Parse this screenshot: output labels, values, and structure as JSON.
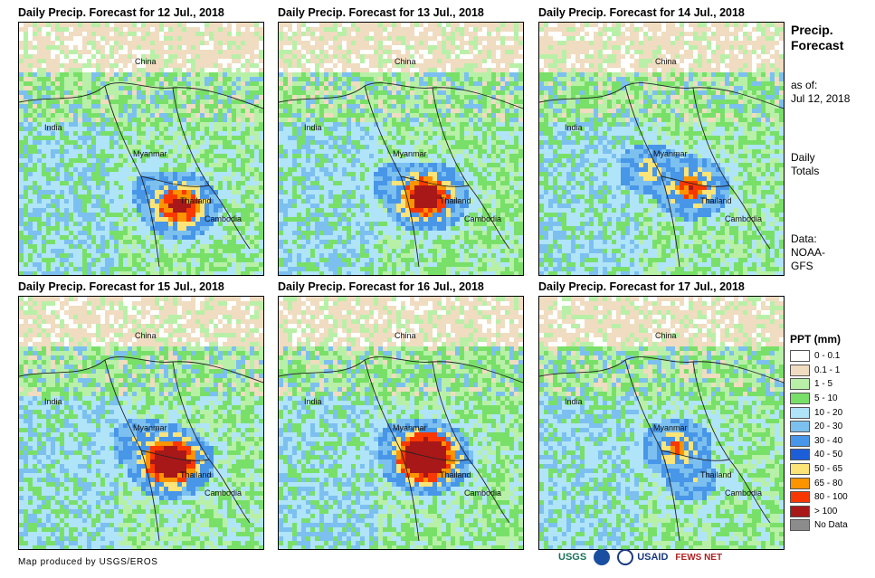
{
  "panels": [
    {
      "title": "Daily Precip. Forecast for 12 Jul., 2018",
      "core": [
        [
          175,
          200,
          1.0
        ],
        [
          150,
          185,
          0.6
        ]
      ]
    },
    {
      "title": "Daily Precip. Forecast for 13 Jul., 2018",
      "core": [
        [
          160,
          190,
          1.1
        ],
        [
          130,
          175,
          0.6
        ]
      ]
    },
    {
      "title": "Daily Precip. Forecast for 14 Jul., 2018",
      "core": [
        [
          165,
          180,
          0.9
        ],
        [
          120,
          160,
          0.7
        ]
      ]
    },
    {
      "title": "Daily Precip. Forecast for 15 Jul., 2018",
      "core": [
        [
          165,
          180,
          1.2
        ],
        [
          135,
          160,
          0.7
        ]
      ]
    },
    {
      "title": "Daily Precip. Forecast for 16 Jul., 2018",
      "core": [
        [
          160,
          175,
          1.3
        ],
        [
          145,
          165,
          0.8
        ]
      ]
    },
    {
      "title": "Daily Precip. Forecast for 17 Jul., 2018",
      "core": [
        [
          150,
          165,
          0.8
        ],
        [
          165,
          200,
          0.6
        ]
      ]
    }
  ],
  "places": {
    "china": "China",
    "india": "India",
    "myanmar": "Myanmar",
    "thailand": "Thailand",
    "cambodia": "Cambodia"
  },
  "sidebar": {
    "title_line1": "Precip.",
    "title_line2": "Forecast",
    "asof_label": "as of:",
    "asof_date": "Jul 12, 2018",
    "totals_line1": "Daily",
    "totals_line2": "Totals",
    "data_label": "Data:",
    "data_source_line1": "NOAA-",
    "data_source_line2": "GFS"
  },
  "legend": {
    "title": "PPT (mm)",
    "items": [
      {
        "label": "0 - 0.1",
        "color": "#ffffff"
      },
      {
        "label": "0.1 - 1",
        "color": "#f0dcc0"
      },
      {
        "label": "1 - 5",
        "color": "#b8f0a8"
      },
      {
        "label": "5 - 10",
        "color": "#78e068"
      },
      {
        "label": "10 - 20",
        "color": "#b0e4f8"
      },
      {
        "label": "20 - 30",
        "color": "#7cc0f0"
      },
      {
        "label": "30 - 40",
        "color": "#4896e8"
      },
      {
        "label": "40 - 50",
        "color": "#1c5ed8"
      },
      {
        "label": "50 - 65",
        "color": "#fce478"
      },
      {
        "label": "65 - 80",
        "color": "#fc9400"
      },
      {
        "label": "80 - 100",
        "color": "#f83800"
      },
      {
        "label": "> 100",
        "color": "#a81818"
      },
      {
        "label": "No Data",
        "color": "#8c8c8c"
      }
    ]
  },
  "footer": {
    "credit": "Map produced by USGS/EROS",
    "logo_usgs": "USGS",
    "logo_usaid": "USAID",
    "logo_fews": "FEWS NET"
  }
}
